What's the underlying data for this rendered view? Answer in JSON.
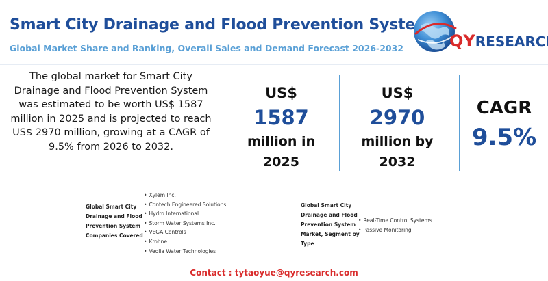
{
  "header": {
    "title": "Smart City Drainage and Flood Prevention System",
    "subtitle": "Global Market Share and Ranking, Overall Sales and Demand Forecast 2026-2032"
  },
  "logo": {
    "prefix": "QY",
    "suffix": "RESEARCH",
    "icon": "globe-icon"
  },
  "description": "The global market for Smart City Drainage and Flood Prevention System was estimated to be worth US$ 1587 million in 2025 and is projected to reach US$ 2970 million, growing at a CAGR of 9.5% from 2026 to 2032.",
  "stats": [
    {
      "currency": "US$",
      "value": "1587",
      "unit_line1": "million in",
      "unit_line2": "2025"
    },
    {
      "currency": "US$",
      "value": "2970",
      "unit_line1": "million by",
      "unit_line2": "2032"
    }
  ],
  "cagr": {
    "label": "CAGR",
    "value": "9.5%"
  },
  "companies": {
    "label_lines": [
      "Global Smart City",
      "Drainage and Flood",
      "Prevention System",
      "Companies Covered"
    ],
    "items": [
      "Xylem Inc.",
      "Contech Engineered Solutions",
      "Hydro International",
      "Storm Water Systems Inc.",
      "VEGA Controls",
      "Krohne",
      "Veolia Water Technologies"
    ]
  },
  "segments": {
    "label_lines": [
      "Global Smart City",
      "Drainage and Flood",
      "Prevention System",
      "Market, Segment by",
      "Type"
    ],
    "items": [
      "Real-Time Control Systems",
      "Passive Monitoring"
    ]
  },
  "contact": "Contact : tytaoyue@qyresearch.com",
  "colors": {
    "primary_blue": "#1f4e9a",
    "light_blue": "#5aa0d6",
    "accent_red": "#d92b2b"
  }
}
